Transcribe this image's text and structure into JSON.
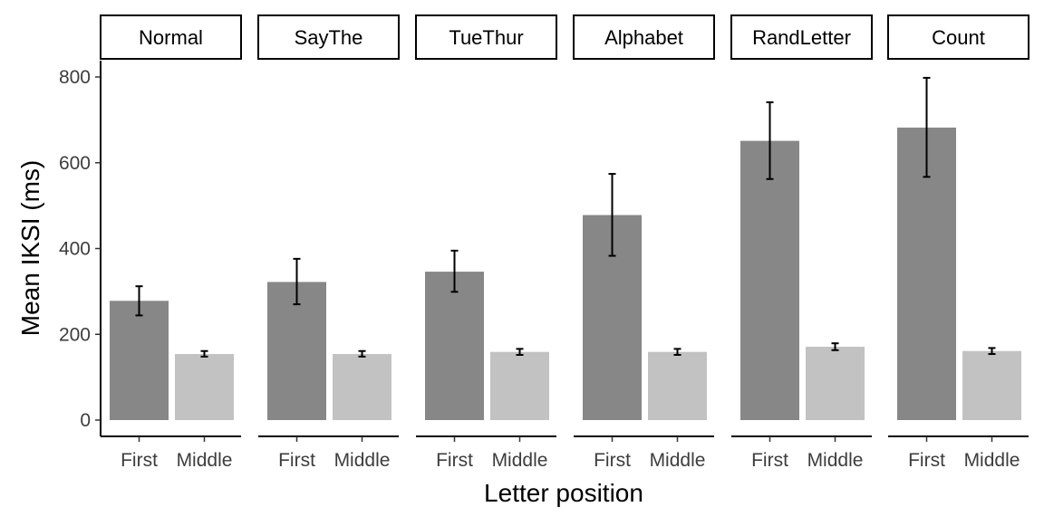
{
  "chart_data": {
    "type": "bar",
    "xlabel": "Letter position",
    "ylabel": "Mean IKSI (ms)",
    "ylim": [
      0,
      830
    ],
    "yticks": [
      0,
      200,
      400,
      600,
      800
    ],
    "categories": [
      "First",
      "Middle"
    ],
    "colors": {
      "First": "#878787",
      "Middle": "#c2c2c2"
    },
    "facets": [
      {
        "name": "Normal",
        "values": [
          278,
          154
        ],
        "errors": [
          [
            244,
            312
          ],
          [
            148,
            161
          ]
        ]
      },
      {
        "name": "SayThe",
        "values": [
          322,
          154
        ],
        "errors": [
          [
            270,
            376
          ],
          [
            148,
            161
          ]
        ]
      },
      {
        "name": "TueThur",
        "values": [
          346,
          159
        ],
        "errors": [
          [
            299,
            395
          ],
          [
            152,
            166
          ]
        ]
      },
      {
        "name": "Alphabet",
        "values": [
          478,
          159
        ],
        "errors": [
          [
            383,
            574
          ],
          [
            152,
            166
          ]
        ]
      },
      {
        "name": "RandLetter",
        "values": [
          651,
          171
        ],
        "errors": [
          [
            562,
            741
          ],
          [
            163,
            179
          ]
        ]
      },
      {
        "name": "Count",
        "values": [
          682,
          161
        ],
        "errors": [
          [
            567,
            798
          ],
          [
            154,
            168
          ]
        ]
      }
    ],
    "grid": false,
    "legend": "none"
  }
}
